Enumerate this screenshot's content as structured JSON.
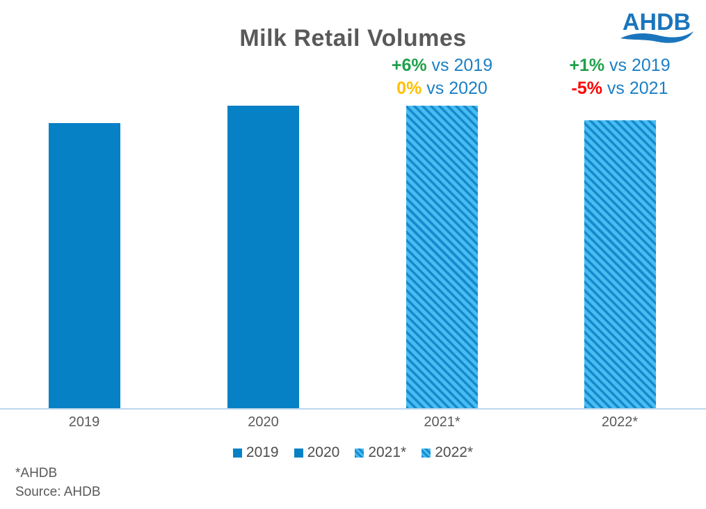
{
  "title": "Milk Retail Volumes",
  "logo": {
    "text": "AHDB"
  },
  "chart_data": {
    "type": "bar",
    "title": "Milk Retail Volumes",
    "categories": [
      "2019",
      "2020",
      "2021*",
      "2022*"
    ],
    "values": [
      100,
      106,
      106,
      101
    ],
    "bar_styles": [
      "solid",
      "solid",
      "hatched",
      "hatched"
    ],
    "xlabel": "",
    "ylabel": "",
    "y_axis_shown": false,
    "gridlines": false,
    "legend_position": "bottom",
    "annotations": [
      {
        "over_category": "2021*",
        "lines": [
          {
            "value": "+6%",
            "value_color": "#1FA04A",
            "suffix": " vs 2019"
          },
          {
            "value": "0%",
            "value_color": "#FFC000",
            "suffix": " vs 2020"
          }
        ]
      },
      {
        "over_category": "2022*",
        "lines": [
          {
            "value": "+1%",
            "value_color": "#1FA04A",
            "suffix": " vs 2019"
          },
          {
            "value": "-5%",
            "value_color": "#FF0000",
            "suffix": " vs 2021"
          }
        ]
      }
    ]
  },
  "legend": {
    "items": [
      {
        "label": "2019",
        "swatch": "solid"
      },
      {
        "label": "2020",
        "swatch": "solid"
      },
      {
        "label": "2021*",
        "swatch": "hatched"
      },
      {
        "label": "2022*",
        "swatch": "hatched"
      }
    ]
  },
  "footnote": "*AHDB",
  "source": "Source: AHDB",
  "colors": {
    "bar_solid": "#0681C5",
    "hatch_light": "#47BDF2",
    "hatch_dark": "#1789CD",
    "vs_text": "#1B7FC4",
    "positive_green": "#1FA04A",
    "neutral_yellow": "#FFC000",
    "negative_red": "#FF0000",
    "text_gray": "#595959",
    "legend_gray": "#4D4D4D",
    "axis_line": "#BDD7EE",
    "logo_blue": "#1B75BC"
  }
}
